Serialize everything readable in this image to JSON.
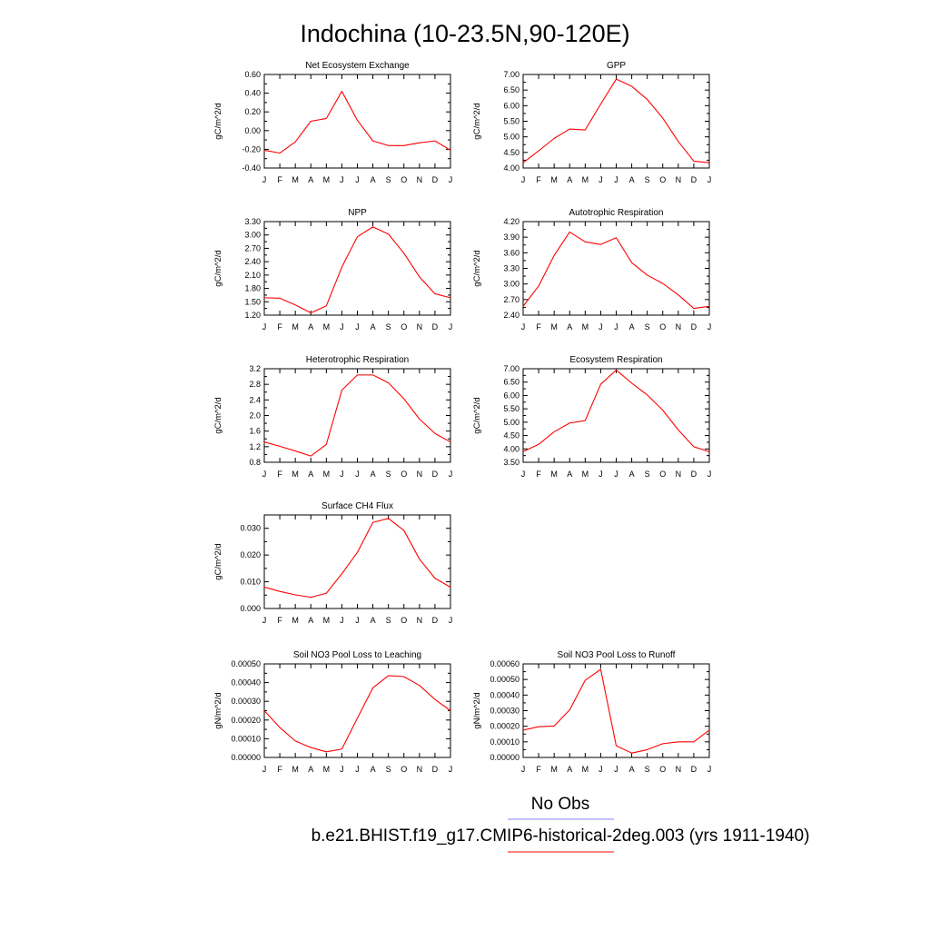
{
  "title": "Indochina (10-23.5N,90-120E)",
  "legend": {
    "obs_label": "No Obs",
    "obs_color": "#8080ff",
    "model_label": "b.e21.BHIST.f19_g17.CMIP6-historical-2deg.003 (yrs 1911-1940)",
    "model_color": "#ff0000"
  },
  "line_color": "#ff0000",
  "chart_data": [
    {
      "type": "line",
      "title": "Net Ecosystem Exchange",
      "ylabel": "gC/m^2/d",
      "categories": [
        "J",
        "F",
        "M",
        "A",
        "M",
        "J",
        "J",
        "A",
        "S",
        "O",
        "N",
        "D",
        "J"
      ],
      "values": [
        -0.21,
        -0.24,
        -0.12,
        0.1,
        0.13,
        0.42,
        0.11,
        -0.11,
        -0.16,
        -0.16,
        -0.13,
        -0.11,
        -0.21
      ],
      "ylim": [
        -0.4,
        0.6
      ],
      "yticks": [
        "0.60",
        "0.40",
        "0.20",
        "0.00",
        "-0.20",
        "-0.40"
      ],
      "ytick_values": [
        0.6,
        0.4,
        0.2,
        0.0,
        -0.2,
        -0.4
      ]
    },
    {
      "type": "line",
      "title": "GPP",
      "ylabel": "gC/m^2/d",
      "categories": [
        "J",
        "F",
        "M",
        "A",
        "M",
        "J",
        "J",
        "A",
        "S",
        "O",
        "N",
        "D",
        "J"
      ],
      "values": [
        4.17,
        4.55,
        4.95,
        5.25,
        5.22,
        6.05,
        6.85,
        6.62,
        6.2,
        5.6,
        4.85,
        4.22,
        4.17
      ],
      "ylim": [
        4.0,
        7.0
      ],
      "yticks": [
        "7.00",
        "6.50",
        "6.00",
        "5.50",
        "5.00",
        "4.50",
        "4.00"
      ],
      "ytick_values": [
        7.0,
        6.5,
        6.0,
        5.5,
        5.0,
        4.5,
        4.0
      ]
    },
    {
      "type": "line",
      "title": "NPP",
      "ylabel": "gC/m^2/d",
      "categories": [
        "J",
        "F",
        "M",
        "A",
        "M",
        "J",
        "J",
        "A",
        "S",
        "O",
        "N",
        "D",
        "J"
      ],
      "values": [
        1.59,
        1.58,
        1.43,
        1.25,
        1.41,
        2.28,
        2.96,
        3.18,
        3.02,
        2.59,
        2.06,
        1.68,
        1.59
      ],
      "ylim": [
        1.2,
        3.3
      ],
      "yticks": [
        "3.30",
        "3.00",
        "2.70",
        "2.40",
        "2.10",
        "1.80",
        "1.50",
        "1.20"
      ],
      "ytick_values": [
        3.3,
        3.0,
        2.7,
        2.4,
        2.1,
        1.8,
        1.5,
        1.2
      ]
    },
    {
      "type": "line",
      "title": "Autotrophic Respiration",
      "ylabel": "gC/m^2/d",
      "categories": [
        "J",
        "F",
        "M",
        "A",
        "M",
        "J",
        "J",
        "A",
        "S",
        "O",
        "N",
        "D",
        "J"
      ],
      "values": [
        2.57,
        2.96,
        3.55,
        4.0,
        3.81,
        3.76,
        3.89,
        3.41,
        3.17,
        3.01,
        2.79,
        2.53,
        2.57
      ],
      "ylim": [
        2.4,
        4.2
      ],
      "yticks": [
        "4.20",
        "3.90",
        "3.60",
        "3.30",
        "3.00",
        "2.70",
        "2.40"
      ],
      "ytick_values": [
        4.2,
        3.9,
        3.6,
        3.3,
        3.0,
        2.7,
        2.4
      ]
    },
    {
      "type": "line",
      "title": "Heterotrophic Respiration",
      "ylabel": "gC/m^2/d",
      "categories": [
        "J",
        "F",
        "M",
        "A",
        "M",
        "J",
        "J",
        "A",
        "S",
        "O",
        "N",
        "D",
        "J"
      ],
      "values": [
        1.32,
        1.21,
        1.09,
        0.96,
        1.26,
        2.65,
        3.04,
        3.04,
        2.84,
        2.43,
        1.91,
        1.54,
        1.32
      ],
      "ylim": [
        0.8,
        3.2
      ],
      "yticks": [
        "3.2",
        "2.8",
        "2.4",
        "2.0",
        "1.6",
        "1.2",
        "0.8"
      ],
      "ytick_values": [
        3.2,
        2.8,
        2.4,
        2.0,
        1.6,
        1.2,
        0.8
      ]
    },
    {
      "type": "line",
      "title": "Ecosystem Respiration",
      "ylabel": "gC/m^2/d",
      "categories": [
        "J",
        "F",
        "M",
        "A",
        "M",
        "J",
        "J",
        "A",
        "S",
        "O",
        "N",
        "D",
        "J"
      ],
      "values": [
        3.9,
        4.17,
        4.64,
        4.97,
        5.06,
        6.42,
        6.95,
        6.46,
        6.02,
        5.45,
        4.71,
        4.08,
        3.9
      ],
      "ylim": [
        3.5,
        7.0
      ],
      "yticks": [
        "7.00",
        "6.50",
        "6.00",
        "5.50",
        "5.00",
        "4.50",
        "4.00",
        "3.50"
      ],
      "ytick_values": [
        7.0,
        6.5,
        6.0,
        5.5,
        5.0,
        4.5,
        4.0,
        3.5
      ]
    },
    {
      "type": "line",
      "title": "Surface CH4 Flux",
      "ylabel": "gC/m^2/d",
      "categories": [
        "J",
        "F",
        "M",
        "A",
        "M",
        "J",
        "J",
        "A",
        "S",
        "O",
        "N",
        "D",
        "J"
      ],
      "values": [
        0.008,
        0.0064,
        0.0051,
        0.0042,
        0.0057,
        0.013,
        0.021,
        0.0322,
        0.0337,
        0.0292,
        0.0185,
        0.0113,
        0.008
      ],
      "ylim": [
        0.0,
        0.035
      ],
      "yticks": [
        "0.030",
        "0.020",
        "0.010",
        "0.000"
      ],
      "ytick_values": [
        0.03,
        0.02,
        0.01,
        0.0
      ]
    },
    {
      "type": "line",
      "title": "Soil NO3 Pool Loss to Leaching",
      "ylabel": "gN/m^2/d",
      "categories": [
        "J",
        "F",
        "M",
        "A",
        "M",
        "J",
        "J",
        "A",
        "S",
        "O",
        "N",
        "D",
        "J"
      ],
      "values": [
        0.00025,
        0.00016,
        8.8e-05,
        5.3e-05,
        3e-05,
        4.5e-05,
        0.00021,
        0.000372,
        0.000437,
        0.000432,
        0.000385,
        0.00031,
        0.00025
      ],
      "ylim": [
        0.0,
        0.0005
      ],
      "yticks": [
        "0.00050",
        "0.00040",
        "0.00030",
        "0.00020",
        "0.00010",
        "0.00000"
      ],
      "ytick_values": [
        0.0005,
        0.0004,
        0.0003,
        0.0002,
        0.0001,
        0.0
      ]
    },
    {
      "type": "line",
      "title": "Soil NO3 Pool Loss to Runoff",
      "ylabel": "gN/m^2/d",
      "categories": [
        "J",
        "F",
        "M",
        "A",
        "M",
        "J",
        "J",
        "A",
        "S",
        "O",
        "N",
        "D",
        "J"
      ],
      "values": [
        0.000175,
        0.000197,
        0.000202,
        0.000305,
        0.000495,
        0.000565,
        7.5e-05,
        2.8e-05,
        5e-05,
        8.8e-05,
        0.0001,
        0.0001,
        0.000175
      ],
      "ylim": [
        0.0,
        0.0006
      ],
      "yticks": [
        "0.00060",
        "0.00050",
        "0.00040",
        "0.00030",
        "0.00020",
        "0.00010",
        "0.00000"
      ],
      "ytick_values": [
        0.0006,
        0.0005,
        0.0004,
        0.0003,
        0.0002,
        0.0001,
        0.0
      ]
    }
  ]
}
